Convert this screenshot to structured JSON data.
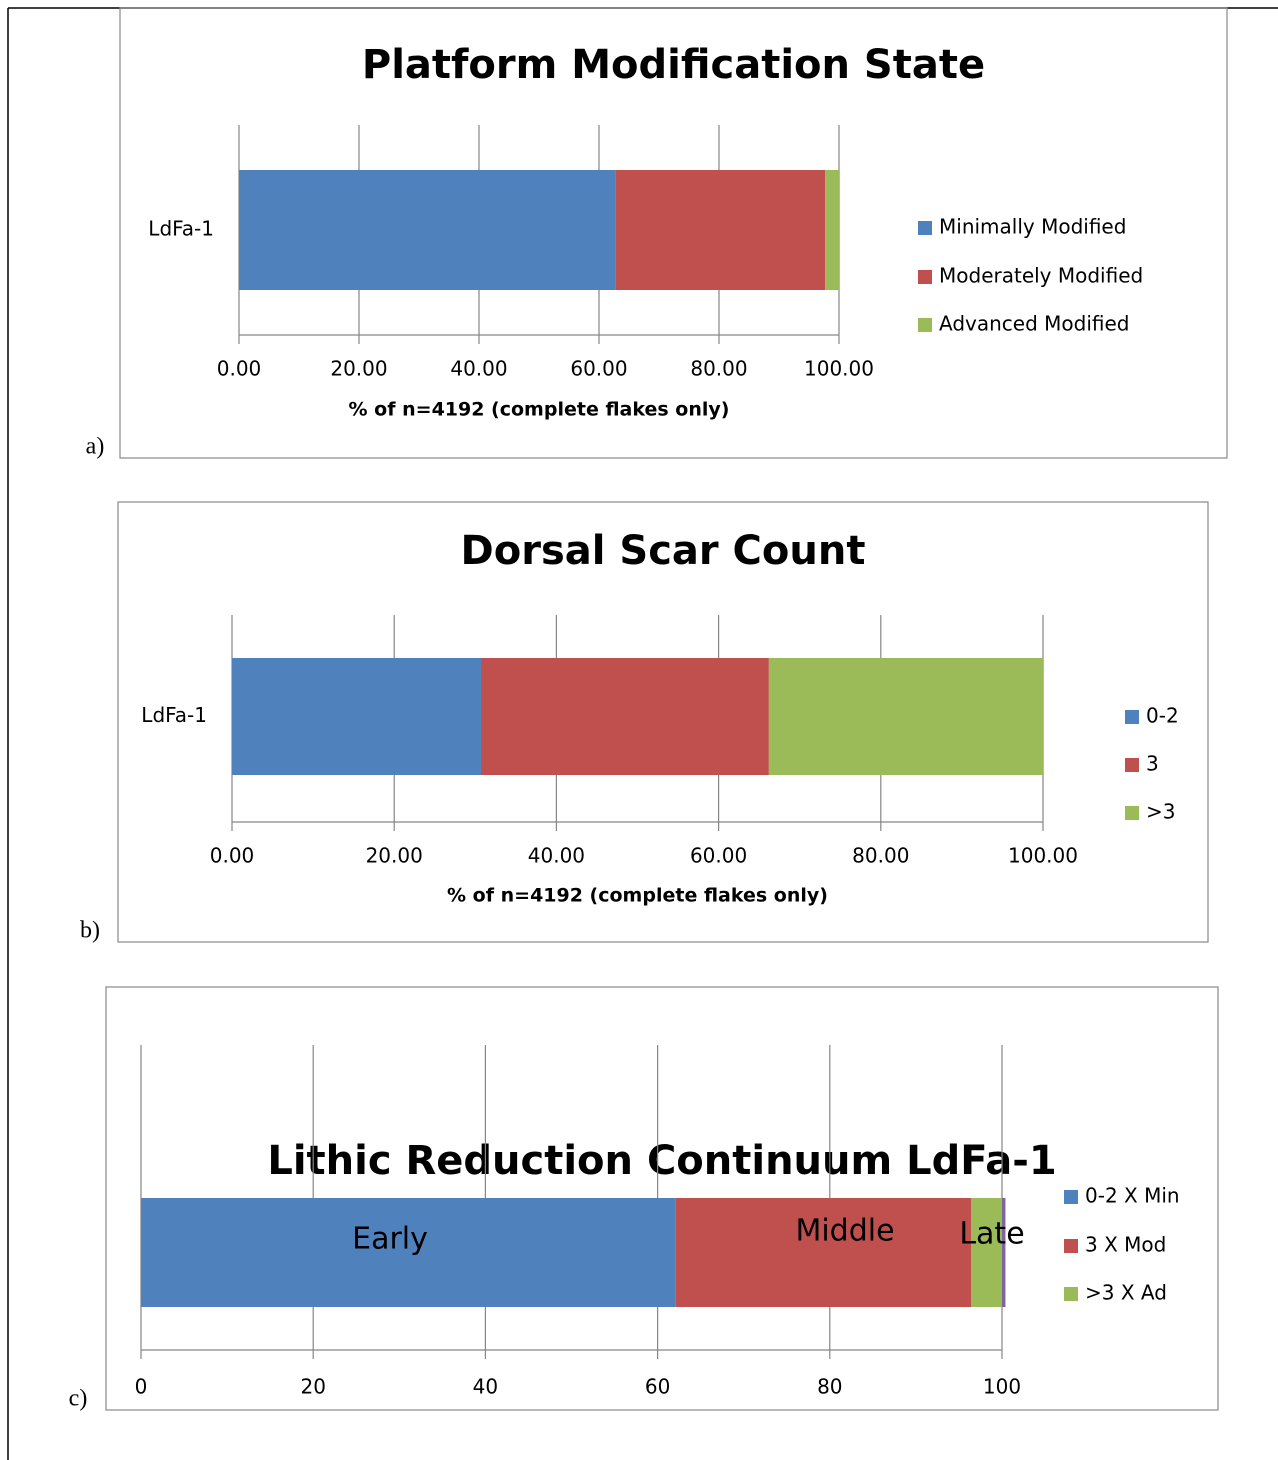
{
  "chart_data": [
    {
      "type": "bar",
      "orientation": "horizontal",
      "stacked": true,
      "panel_label": "a)",
      "title": "Platform Modification State",
      "x_label": "% of n=4192 (complete flakes only)",
      "categories": [
        "LdFa-1"
      ],
      "series": [
        {
          "name": "Minimally Modified",
          "color": "#4f81bd",
          "values": [
            62.7
          ]
        },
        {
          "name": "Moderately Modified",
          "color": "#c0504d",
          "values": [
            35.0
          ]
        },
        {
          "name": "Advanced Modified",
          "color": "#9bbb59",
          "values": [
            2.3
          ]
        }
      ],
      "xlim": [
        0,
        100
      ],
      "xticks": [
        {
          "value": 0,
          "label": "0.00"
        },
        {
          "value": 20,
          "label": "20.00"
        },
        {
          "value": 40,
          "label": "40.00"
        },
        {
          "value": 60,
          "label": "60.00"
        },
        {
          "value": 80,
          "label": "80.00"
        },
        {
          "value": 100,
          "label": "100.00"
        }
      ],
      "grid": true,
      "legend": "right"
    },
    {
      "type": "bar",
      "orientation": "horizontal",
      "stacked": true,
      "panel_label": "b)",
      "title": "Dorsal Scar Count",
      "x_label": "% of n=4192 (complete flakes only)",
      "categories": [
        "LdFa-1"
      ],
      "series": [
        {
          "name": "0-2",
          "color": "#4f81bd",
          "values": [
            30.7
          ]
        },
        {
          "name": "3",
          "color": "#c0504d",
          "values": [
            35.5
          ]
        },
        {
          "name": ">3",
          "color": "#9bbb59",
          "values": [
            33.8
          ]
        }
      ],
      "xlim": [
        0,
        100
      ],
      "xticks": [
        {
          "value": 0,
          "label": "0.00"
        },
        {
          "value": 20,
          "label": "20.00"
        },
        {
          "value": 40,
          "label": "40.00"
        },
        {
          "value": 60,
          "label": "60.00"
        },
        {
          "value": 80,
          "label": "80.00"
        },
        {
          "value": 100,
          "label": "100.00"
        }
      ],
      "grid": true,
      "legend": "right"
    },
    {
      "type": "bar",
      "orientation": "horizontal",
      "stacked": true,
      "panel_label": "c)",
      "title": "Lithic Reduction Continuum LdFa-1",
      "categories": [
        null
      ],
      "series": [
        {
          "name": "0-2 X Min",
          "color": "#4f81bd",
          "values": [
            62.1
          ]
        },
        {
          "name": "3 X Mod",
          "color": "#c0504d",
          "values": [
            34.3
          ]
        },
        {
          "name": ">3 X Ad",
          "color": "#9bbb59",
          "values": [
            3.6
          ]
        },
        {
          "name": null,
          "color": "#8064a2",
          "values": [
            0.4
          ]
        }
      ],
      "annotations": [
        "Early",
        "Middle",
        "Late"
      ],
      "xlim": [
        0,
        100
      ],
      "xticks": [
        0,
        20,
        40,
        60,
        80,
        100
      ],
      "grid": true,
      "legend": "right"
    }
  ]
}
